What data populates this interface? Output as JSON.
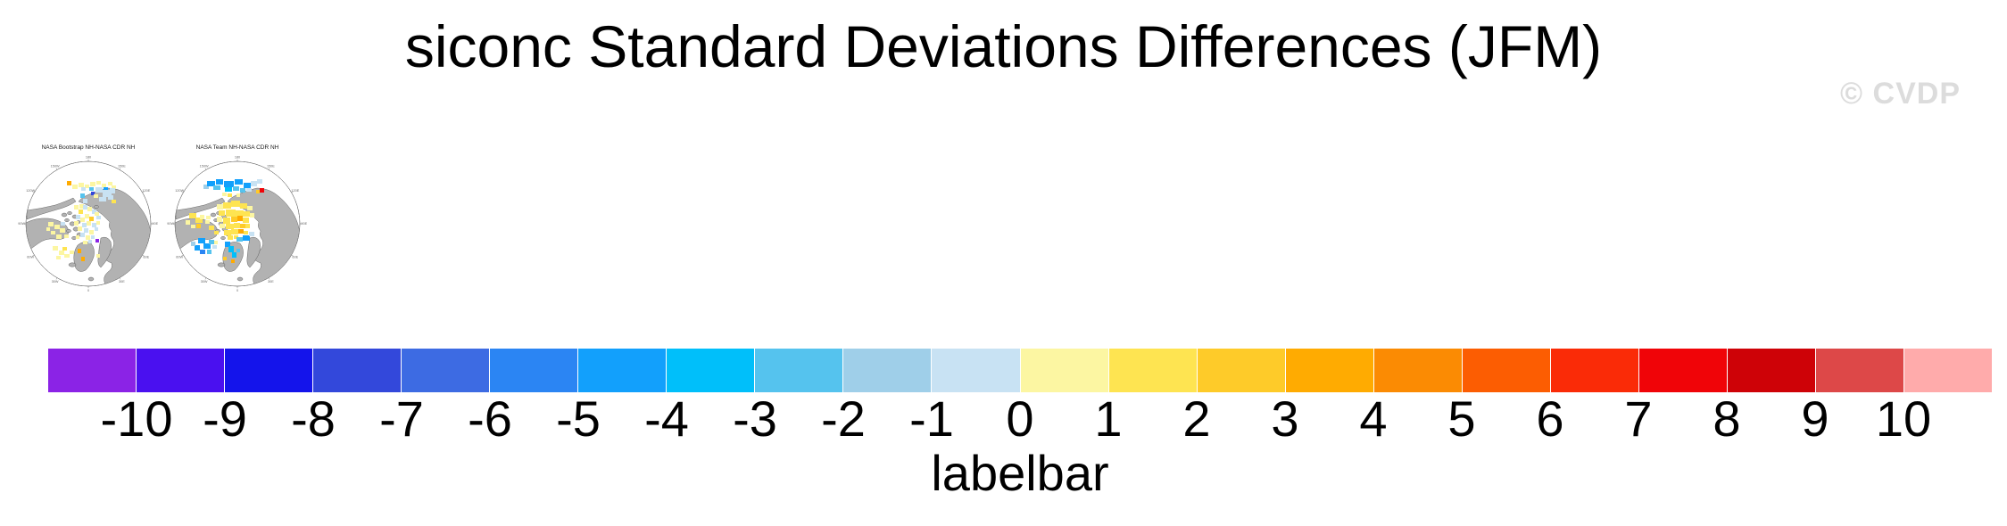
{
  "title": "siconc Standard Deviations Differences (JFM)",
  "watermark": "© CVDP",
  "maps": [
    {
      "title": "NASA Bootstrap NH-NASA CDR NH",
      "patches": [
        [
          47,
          23,
          5,
          5,
          14
        ],
        [
          53,
          27,
          6,
          5,
          11
        ],
        [
          60,
          25,
          6,
          5,
          11
        ],
        [
          67,
          27,
          5,
          4,
          11
        ],
        [
          73,
          24,
          6,
          5,
          11
        ],
        [
          80,
          23,
          5,
          4,
          11
        ],
        [
          86,
          26,
          5,
          4,
          11
        ],
        [
          93,
          24,
          5,
          4,
          11
        ],
        [
          63,
          30,
          5,
          4,
          10
        ],
        [
          72,
          30,
          5,
          4,
          8
        ],
        [
          88,
          30,
          5,
          4,
          6
        ],
        [
          97,
          28,
          5,
          4,
          11
        ],
        [
          74,
          35,
          4,
          4,
          3
        ],
        [
          79,
          30,
          8,
          6,
          10
        ],
        [
          87,
          33,
          10,
          8,
          10
        ],
        [
          83,
          41,
          8,
          5,
          10
        ],
        [
          95,
          31,
          6,
          6,
          10
        ],
        [
          93,
          39,
          6,
          5,
          10
        ],
        [
          77,
          38,
          5,
          4,
          11
        ],
        [
          97,
          44,
          5,
          4,
          12
        ],
        [
          62,
          37,
          5,
          5,
          8
        ],
        [
          65,
          43,
          5,
          5,
          10
        ],
        [
          61,
          49,
          5,
          5,
          11
        ],
        [
          55,
          50,
          5,
          5,
          11
        ],
        [
          65,
          50,
          5,
          5,
          10
        ],
        [
          70,
          52,
          5,
          5,
          11
        ],
        [
          60,
          55,
          5,
          5,
          12
        ],
        [
          75,
          55,
          5,
          5,
          10
        ],
        [
          78,
          58,
          5,
          4,
          11
        ],
        [
          57,
          61,
          5,
          5,
          10
        ],
        [
          62,
          64,
          5,
          5,
          11
        ],
        [
          67,
          60,
          5,
          5,
          11
        ],
        [
          72,
          63,
          5,
          5,
          13
        ],
        [
          80,
          62,
          5,
          4,
          10
        ],
        [
          55,
          68,
          5,
          5,
          11
        ],
        [
          64,
          70,
          5,
          5,
          10
        ],
        [
          69,
          68,
          5,
          5,
          11
        ],
        [
          75,
          70,
          5,
          5,
          10
        ],
        [
          80,
          68,
          4,
          4,
          11
        ],
        [
          59,
          74,
          5,
          5,
          11
        ],
        [
          66,
          76,
          5,
          5,
          10
        ],
        [
          72,
          78,
          5,
          5,
          11
        ],
        [
          78,
          75,
          4,
          4,
          10
        ],
        [
          62,
          81,
          5,
          5,
          10
        ],
        [
          68,
          84,
          5,
          5,
          11
        ],
        [
          74,
          84,
          4,
          4,
          10
        ],
        [
          57,
          84,
          4,
          4,
          11
        ],
        [
          65,
          90,
          5,
          4,
          11
        ],
        [
          71,
          89,
          4,
          4,
          10
        ],
        [
          26,
          69,
          6,
          5,
          11
        ],
        [
          33,
          72,
          6,
          5,
          11
        ],
        [
          40,
          69,
          5,
          4,
          10
        ],
        [
          39,
          76,
          6,
          5,
          11
        ],
        [
          29,
          79,
          5,
          4,
          11
        ],
        [
          35,
          83,
          6,
          5,
          11
        ],
        [
          44,
          83,
          5,
          4,
          11
        ],
        [
          24,
          75,
          4,
          4,
          11
        ],
        [
          31,
          96,
          6,
          5,
          11
        ],
        [
          38,
          101,
          6,
          5,
          11
        ],
        [
          44,
          105,
          6,
          4,
          11
        ],
        [
          50,
          101,
          5,
          4,
          11
        ],
        [
          35,
          107,
          5,
          4,
          11
        ],
        [
          42,
          97,
          5,
          4,
          12
        ],
        [
          59,
          99,
          4,
          5,
          14
        ],
        [
          63,
          108,
          4,
          5,
          14
        ],
        [
          79,
          88,
          4,
          4,
          0
        ],
        [
          80,
          105,
          4,
          4,
          11
        ]
      ]
    },
    {
      "title": "NASA Team NH-NASA CDR NH",
      "patches": [
        [
          33,
          27,
          6,
          5,
          9
        ],
        [
          37,
          23,
          9,
          6,
          6
        ],
        [
          47,
          21,
          8,
          6,
          6
        ],
        [
          56,
          23,
          11,
          7,
          6
        ],
        [
          68,
          21,
          9,
          6,
          6
        ],
        [
          78,
          25,
          8,
          6,
          6
        ],
        [
          86,
          23,
          7,
          6,
          10
        ],
        [
          93,
          21,
          6,
          5,
          10
        ],
        [
          44,
          28,
          8,
          5,
          8
        ],
        [
          57,
          30,
          8,
          5,
          7
        ],
        [
          66,
          29,
          7,
          5,
          8
        ],
        [
          74,
          31,
          6,
          5,
          8
        ],
        [
          81,
          31,
          6,
          4,
          10
        ],
        [
          96,
          31,
          5,
          5,
          18
        ],
        [
          92,
          33,
          4,
          4,
          13
        ],
        [
          54,
          36,
          5,
          4,
          11
        ],
        [
          60,
          37,
          5,
          4,
          12
        ],
        [
          70,
          37,
          4,
          4,
          11
        ],
        [
          48,
          49,
          7,
          6,
          11
        ],
        [
          55,
          47,
          9,
          7,
          12
        ],
        [
          64,
          45,
          10,
          7,
          12
        ],
        [
          74,
          48,
          8,
          6,
          12
        ],
        [
          82,
          51,
          6,
          5,
          11
        ],
        [
          50,
          56,
          7,
          6,
          12
        ],
        [
          58,
          55,
          11,
          8,
          12
        ],
        [
          69,
          56,
          9,
          7,
          12
        ],
        [
          78,
          57,
          7,
          6,
          12
        ],
        [
          85,
          59,
          5,
          5,
          11
        ],
        [
          48,
          63,
          6,
          6,
          11
        ],
        [
          55,
          64,
          8,
          7,
          12
        ],
        [
          64,
          63,
          7,
          6,
          13
        ],
        [
          71,
          62,
          6,
          6,
          14
        ],
        [
          77,
          64,
          7,
          6,
          12
        ],
        [
          51,
          71,
          6,
          5,
          11
        ],
        [
          58,
          71,
          9,
          6,
          12
        ],
        [
          67,
          70,
          7,
          6,
          12
        ],
        [
          74,
          71,
          6,
          5,
          13
        ],
        [
          80,
          71,
          5,
          5,
          12
        ],
        [
          56,
          78,
          8,
          6,
          12
        ],
        [
          64,
          77,
          8,
          6,
          12
        ],
        [
          72,
          77,
          6,
          5,
          14
        ],
        [
          78,
          79,
          5,
          4,
          12
        ],
        [
          60,
          84,
          6,
          5,
          12
        ],
        [
          67,
          84,
          5,
          4,
          12
        ],
        [
          17,
          59,
          8,
          6,
          12
        ],
        [
          24,
          64,
          8,
          6,
          12
        ],
        [
          13,
          67,
          5,
          5,
          11
        ],
        [
          29,
          61,
          5,
          5,
          11
        ],
        [
          19,
          72,
          5,
          4,
          11
        ],
        [
          25,
          71,
          5,
          5,
          13
        ],
        [
          35,
          67,
          5,
          4,
          11
        ],
        [
          39,
          73,
          6,
          5,
          12
        ],
        [
          45,
          79,
          5,
          4,
          12
        ],
        [
          36,
          62,
          5,
          4,
          11
        ],
        [
          77,
          84,
          8,
          6,
          6
        ],
        [
          70,
          86,
          7,
          5,
          8
        ],
        [
          84,
          80,
          6,
          5,
          10
        ],
        [
          57,
          91,
          6,
          6,
          6
        ],
        [
          61,
          96,
          6,
          7,
          7
        ],
        [
          65,
          103,
          5,
          6,
          7
        ],
        [
          70,
          99,
          4,
          4,
          8
        ],
        [
          27,
          87,
          8,
          6,
          6
        ],
        [
          33,
          93,
          8,
          6,
          6
        ],
        [
          23,
          95,
          6,
          6,
          6
        ],
        [
          29,
          100,
          6,
          5,
          5
        ],
        [
          39,
          89,
          6,
          5,
          8
        ],
        [
          37,
          100,
          5,
          5,
          8
        ],
        [
          19,
          91,
          5,
          5,
          9
        ],
        [
          43,
          95,
          5,
          4,
          10
        ],
        [
          45,
          90,
          4,
          4,
          11
        ],
        [
          55,
          108,
          4,
          4,
          13
        ],
        [
          64,
          111,
          4,
          4,
          14
        ]
      ]
    }
  ],
  "ring_labels": [
    {
      "text": "180",
      "angle": 0
    },
    {
      "text": "150E",
      "angle": 30
    },
    {
      "text": "120E",
      "angle": 60
    },
    {
      "text": "90E",
      "angle": 90
    },
    {
      "text": "60E",
      "angle": 120
    },
    {
      "text": "30E",
      "angle": 150
    },
    {
      "text": "0",
      "angle": 180
    },
    {
      "text": "30W",
      "angle": 210
    },
    {
      "text": "60W",
      "angle": 240
    },
    {
      "text": "90W",
      "angle": 270
    },
    {
      "text": "120W",
      "angle": 300
    },
    {
      "text": "150W",
      "angle": 330
    }
  ],
  "labelbar": {
    "label": "labelbar",
    "ticks": [
      "-10",
      "-9",
      "-8",
      "-7",
      "-6",
      "-5",
      "-4",
      "-3",
      "-2",
      "-1",
      "0",
      "1",
      "2",
      "3",
      "4",
      "5",
      "6",
      "7",
      "8",
      "9",
      "10"
    ],
    "colors": [
      "#8b23e6",
      "#4a10f0",
      "#1414eb",
      "#3348db",
      "#3d6be3",
      "#2b85f3",
      "#12a0fc",
      "#00bffa",
      "#55c3ee",
      "#9fcfe9",
      "#c8e2f3",
      "#fcf6a2",
      "#fee451",
      "#fecb29",
      "#ffab01",
      "#fb8b03",
      "#fc5d02",
      "#fa2b07",
      "#f00408",
      "#ce0207",
      "#dd4848",
      "#ffabab"
    ]
  },
  "map_style": {
    "land_fill": "#b2b2b2",
    "land_stroke": "#4d4d4d",
    "circle_stroke": "#666666",
    "ring_text_color": "#666666"
  },
  "chart_data": {
    "type": "heatmap",
    "title": "siconc Standard Deviations Differences (JFM)",
    "panels": [
      {
        "title": "NASA Bootstrap NH-NASA CDR NH",
        "projection": "northern-hemisphere-polar-stereographic"
      },
      {
        "title": "NASA Team NH-NASA CDR NH",
        "projection": "northern-hemisphere-polar-stereographic"
      }
    ],
    "colorbar": {
      "label": "labelbar",
      "orientation": "horizontal",
      "tick_values": [
        -10,
        -9,
        -8,
        -7,
        -6,
        -5,
        -4,
        -3,
        -2,
        -1,
        0,
        1,
        2,
        3,
        4,
        5,
        6,
        7,
        8,
        9,
        10
      ],
      "colors": [
        "#8b23e6",
        "#4a10f0",
        "#1414eb",
        "#3348db",
        "#3d6be3",
        "#2b85f3",
        "#12a0fc",
        "#00bffa",
        "#55c3ee",
        "#9fcfe9",
        "#c8e2f3",
        "#fcf6a2",
        "#fee451",
        "#fecb29",
        "#ffab01",
        "#fb8b03",
        "#fc5d02",
        "#fa2b07",
        "#f00408",
        "#ce0207",
        "#dd4848",
        "#ffabab"
      ]
    },
    "watermark": "© CVDP"
  }
}
